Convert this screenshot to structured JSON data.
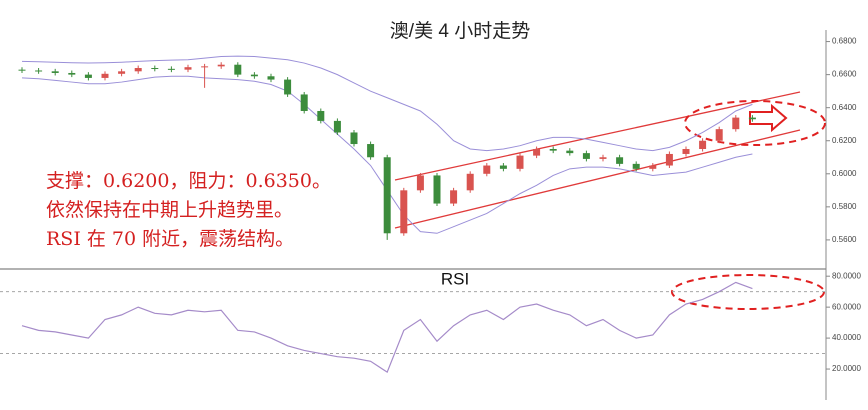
{
  "chart_data": [
    {
      "type": "candlestick",
      "title": "澳/美 4 小时走势",
      "annotations": [
        "支撑：0.6200，阻力：0.6350。",
        "依然保持在中期上升趋势里。",
        "RSI 在 70 附近，震荡结构。"
      ],
      "categories": [
        null,
        null,
        null,
        null,
        null,
        null,
        null,
        null,
        null,
        null,
        null,
        null,
        null,
        null,
        null,
        null,
        null,
        null,
        null,
        null,
        null,
        null,
        null,
        null,
        null,
        null,
        null,
        null,
        null,
        null,
        null,
        null,
        null,
        null,
        null,
        null,
        null,
        null,
        null,
        null,
        null,
        null,
        null,
        null,
        null
      ],
      "open": [
        0.663,
        0.6625,
        0.662,
        0.661,
        0.66,
        0.658,
        0.6605,
        0.662,
        0.664,
        0.6635,
        0.663,
        0.6645,
        0.665,
        0.666,
        0.66,
        0.659,
        0.657,
        0.648,
        0.638,
        0.632,
        0.625,
        0.618,
        0.61,
        0.564,
        0.59,
        0.599,
        0.582,
        0.59,
        0.6,
        0.605,
        0.603,
        0.611,
        0.615,
        0.614,
        0.6125,
        0.609,
        0.61,
        0.606,
        0.603,
        0.605,
        0.612,
        0.615,
        0.62,
        0.627,
        0.634
      ],
      "high": [
        0.6645,
        0.664,
        0.6635,
        0.6625,
        0.6615,
        0.662,
        0.6635,
        0.6655,
        0.6655,
        0.665,
        0.666,
        0.6665,
        0.6675,
        0.6675,
        0.6615,
        0.6605,
        0.6585,
        0.6495,
        0.6395,
        0.6335,
        0.6265,
        0.6195,
        0.6115,
        0.5915,
        0.6005,
        0.6005,
        0.5915,
        0.6015,
        0.6065,
        0.6065,
        0.6125,
        0.6165,
        0.6165,
        0.6155,
        0.614,
        0.6115,
        0.6115,
        0.6075,
        0.6065,
        0.6135,
        0.6165,
        0.6215,
        0.6285,
        0.6355,
        0.6355
      ],
      "low": [
        0.661,
        0.6605,
        0.6595,
        0.6585,
        0.6565,
        0.6565,
        0.659,
        0.6605,
        0.662,
        0.6615,
        0.6615,
        0.652,
        0.6635,
        0.6585,
        0.6575,
        0.6555,
        0.6465,
        0.6365,
        0.6305,
        0.6235,
        0.6165,
        0.6085,
        0.56,
        0.5625,
        0.5885,
        0.5805,
        0.5805,
        0.5885,
        0.5985,
        0.6015,
        0.6015,
        0.6095,
        0.6125,
        0.611,
        0.6075,
        0.6075,
        0.6045,
        0.6015,
        0.6015,
        0.6035,
        0.6105,
        0.6135,
        0.6185,
        0.6255,
        0.6315
      ],
      "close": [
        0.6625,
        0.662,
        0.661,
        0.66,
        0.658,
        0.6605,
        0.662,
        0.664,
        0.6635,
        0.663,
        0.6645,
        0.665,
        0.666,
        0.66,
        0.659,
        0.657,
        0.648,
        0.638,
        0.632,
        0.625,
        0.618,
        0.61,
        0.564,
        0.59,
        0.599,
        0.582,
        0.59,
        0.6,
        0.605,
        0.603,
        0.611,
        0.615,
        0.614,
        0.6125,
        0.609,
        0.61,
        0.606,
        0.603,
        0.605,
        0.612,
        0.615,
        0.62,
        0.627,
        0.634,
        0.633
      ],
      "up_color": "#d9534f",
      "down_color": "#3c8c3c",
      "bands": [
        {
          "color": "#9a8fd8",
          "values": [
            0.668,
            0.6678,
            0.6675,
            0.6672,
            0.667,
            0.6672,
            0.6675,
            0.668,
            0.6685,
            0.6688,
            0.669,
            0.67,
            0.671,
            0.6712,
            0.671,
            0.67,
            0.669,
            0.667,
            0.664,
            0.66,
            0.655,
            0.65,
            0.646,
            0.642,
            0.638,
            0.63,
            0.62,
            0.615,
            0.614,
            0.615,
            0.617,
            0.62,
            0.622,
            0.622,
            0.621,
            0.619,
            0.617,
            0.615,
            0.614,
            0.616,
            0.62,
            0.625,
            0.631,
            0.638,
            0.642
          ]
        },
        {
          "color": "#9a8fd8",
          "values": [
            0.658,
            0.6575,
            0.6565,
            0.6555,
            0.6545,
            0.6545,
            0.6555,
            0.657,
            0.6585,
            0.659,
            0.659,
            0.658,
            0.6575,
            0.657,
            0.656,
            0.654,
            0.65,
            0.642,
            0.633,
            0.624,
            0.615,
            0.605,
            0.59,
            0.575,
            0.565,
            0.564,
            0.568,
            0.572,
            0.576,
            0.582,
            0.588,
            0.593,
            0.599,
            0.603,
            0.604,
            0.604,
            0.603,
            0.601,
            0.599,
            0.6,
            0.601,
            0.604,
            0.607,
            0.61,
            0.612
          ]
        }
      ],
      "ylim": [
        0.543,
        0.687
      ],
      "yticks": [
        {
          "value": 0.68,
          "label": "0.6800"
        },
        {
          "value": 0.66,
          "label": "0.6600"
        },
        {
          "value": 0.64,
          "label": "0.6400"
        },
        {
          "value": 0.62,
          "label": "0.6200"
        },
        {
          "value": 0.6,
          "label": "0.6000"
        },
        {
          "value": 0.58,
          "label": "0.5800"
        },
        {
          "value": 0.56,
          "label": "0.5600"
        }
      ]
    },
    {
      "type": "line",
      "title": "RSI",
      "color": "#a58bc9",
      "categories": [
        null,
        null,
        null,
        null,
        null,
        null,
        null,
        null,
        null,
        null,
        null,
        null,
        null,
        null,
        null,
        null,
        null,
        null,
        null,
        null,
        null,
        null,
        null,
        null,
        null,
        null,
        null,
        null,
        null,
        null,
        null,
        null,
        null,
        null,
        null,
        null,
        null,
        null,
        null,
        null,
        null,
        null,
        null,
        null,
        null
      ],
      "values": [
        48,
        45,
        44,
        42,
        40,
        52,
        55,
        60,
        56,
        55,
        58,
        57,
        58,
        45,
        44,
        40,
        35,
        32,
        30,
        28,
        27,
        25,
        18,
        45,
        52,
        38,
        48,
        55,
        58,
        52,
        60,
        62,
        58,
        55,
        48,
        52,
        45,
        40,
        42,
        55,
        62,
        65,
        70,
        76,
        72
      ],
      "levels": [
        70,
        30
      ],
      "ylim": [
        0,
        84
      ],
      "yticks": [
        {
          "value": 80,
          "label": "80.0000"
        },
        {
          "value": 60,
          "label": "60.0000"
        },
        {
          "value": 40,
          "label": "40.0000"
        },
        {
          "value": 20,
          "label": "20.0000"
        }
      ]
    }
  ]
}
